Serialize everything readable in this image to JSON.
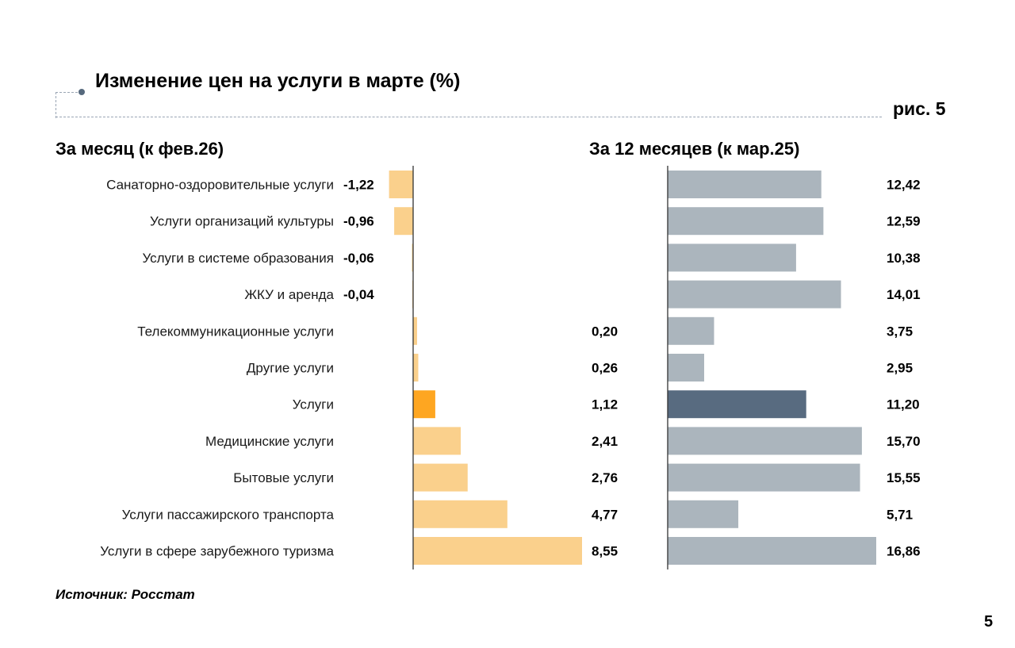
{
  "header": {
    "title": "Изменение цен на услуги в марте (%)",
    "figure_label": "рис. 5"
  },
  "footer": {
    "source": "Источник: Росстат",
    "page_number": "5"
  },
  "colors": {
    "month_bar": "#fad08c",
    "month_bar_highlight": "#fea621",
    "year_bar": "#abb5bd",
    "year_bar_highlight": "#586b80",
    "axis": "#333333",
    "frame": "#9aa5b4"
  },
  "chart_data": [
    {
      "type": "bar",
      "orientation": "horizontal",
      "title": "За месяц (к фев.26)",
      "xlabel": "",
      "ylabel": "",
      "xlim": [
        -1.5,
        8.8
      ],
      "grid": false,
      "highlight": "Услуги",
      "categories": [
        "Санаторно-оздоровительные услуги",
        "Услуги организаций культуры",
        "Услуги в системе образования",
        "ЖКУ и аренда",
        "Телекоммуникационные услуги",
        "Другие услуги",
        "Услуги",
        "Медицинские услуги",
        "Бытовые услуги",
        "Услуги пассажирского транспорта",
        "Услуги в сфере зарубежного туризма"
      ],
      "values": [
        -1.22,
        -0.96,
        -0.06,
        -0.04,
        0.2,
        0.26,
        1.12,
        2.41,
        2.76,
        4.77,
        8.55
      ],
      "labels": [
        "-1,22",
        "-0,96",
        "-0,06",
        "-0,04",
        "0,20",
        "0,26",
        "1,12",
        "2,41",
        "2,76",
        "4,77",
        "8,55"
      ]
    },
    {
      "type": "bar",
      "orientation": "horizontal",
      "title": "За 12 месяцев (к мар.25)",
      "xlabel": "",
      "ylabel": "",
      "xlim": [
        0,
        17.5
      ],
      "grid": false,
      "highlight": "Услуги",
      "categories": [
        "Санаторно-оздоровительные услуги",
        "Услуги организаций культуры",
        "Услуги в системе образования",
        "ЖКУ и аренда",
        "Телекоммуникационные услуги",
        "Другие услуги",
        "Услуги",
        "Медицинские услуги",
        "Бытовые услуги",
        "Услуги пассажирского транспорта",
        "Услуги в сфере зарубежного туризма"
      ],
      "values": [
        12.42,
        12.59,
        10.38,
        14.01,
        3.75,
        2.95,
        11.2,
        15.7,
        15.55,
        5.71,
        16.86
      ],
      "labels": [
        "12,42",
        "12,59",
        "10,38",
        "14,01",
        "3,75",
        "2,95",
        "11,20",
        "15,70",
        "15,55",
        "5,71",
        "16,86"
      ]
    }
  ]
}
